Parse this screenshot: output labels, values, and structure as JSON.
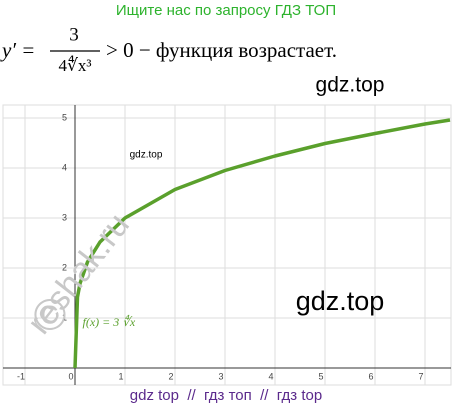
{
  "header": {
    "search_hint": "Ищите нас по запросу ГДЗ ТОП"
  },
  "formula": {
    "lhs": "y′ =",
    "numerator": "3",
    "denominator": "4∜x³",
    "rest": "> 0 − функция возрастает."
  },
  "watermarks": {
    "top_right": "gdz.top",
    "chart_small": "gdz.top",
    "reshak": "reshak.ru",
    "copyright": "©",
    "chart_large": "gdz.top"
  },
  "chart_data": {
    "type": "line",
    "annotation": "f(x) = 3 ∜x",
    "x": [
      0,
      0.05,
      0.1,
      0.25,
      0.5,
      1,
      2,
      3,
      4,
      5,
      6,
      7,
      7.5
    ],
    "series": [
      {
        "color": "#5aa02c",
        "values": [
          0,
          1.42,
          1.69,
          2.12,
          2.52,
          3,
          3.57,
          3.95,
          4.24,
          4.49,
          4.69,
          4.88,
          4.96
        ]
      }
    ],
    "xlim": [
      -1.44,
      7.52
    ],
    "ylim": [
      -0.34,
      5.26
    ],
    "xticks": [
      -1,
      0,
      1,
      2,
      3,
      4,
      5,
      6,
      7
    ],
    "yticks": [
      1,
      2,
      3,
      4,
      5
    ],
    "grid": true
  },
  "footer": "gdz top  //  гдз топ  //  гдз top"
}
